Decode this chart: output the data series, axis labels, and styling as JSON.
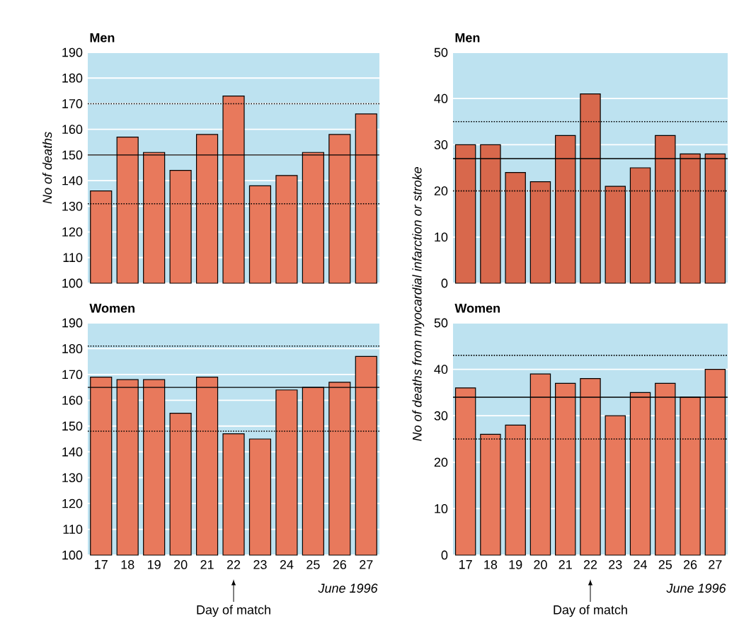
{
  "chart_data": [
    {
      "type": "bar",
      "title": "Men",
      "ylabel": "No of deaths",
      "categories": [
        "17",
        "18",
        "19",
        "20",
        "21",
        "22",
        "23",
        "24",
        "25",
        "26",
        "27"
      ],
      "values": [
        136,
        157,
        151,
        144,
        158,
        173,
        138,
        142,
        151,
        158,
        166
      ],
      "color": "#e8795c",
      "ylim": [
        100,
        190
      ],
      "yticks": [
        100,
        110,
        120,
        130,
        140,
        150,
        160,
        170,
        180,
        190
      ],
      "grid": "y",
      "tick_labels": "y",
      "bands": [
        {
          "axis": "y",
          "from": 100,
          "to": 190,
          "color": "#bde2f0"
        }
      ],
      "ref_lines": [
        {
          "axis": "y",
          "value": 170,
          "line_style": "dotted"
        },
        {
          "axis": "y",
          "value": 150,
          "line_style": "solid"
        },
        {
          "axis": "y",
          "value": 131,
          "line_style": "dotted"
        }
      ]
    },
    {
      "type": "bar",
      "title": "Men",
      "ylabel": "No of deaths from myocardial infarction or stroke",
      "categories": [
        "17",
        "18",
        "19",
        "20",
        "21",
        "22",
        "23",
        "24",
        "25",
        "26",
        "27"
      ],
      "values": [
        30,
        30,
        24,
        22,
        32,
        41,
        21,
        25,
        32,
        28,
        28
      ],
      "color": "#d8684c",
      "ylim": [
        0,
        50
      ],
      "yticks": [
        0,
        10,
        20,
        30,
        40,
        50
      ],
      "grid": "y",
      "tick_labels": "y",
      "bands": [
        {
          "axis": "y",
          "from": 0,
          "to": 50,
          "color": "#bde2f0"
        }
      ],
      "ref_lines": [
        {
          "axis": "y",
          "value": 35,
          "line_style": "dotted"
        },
        {
          "axis": "y",
          "value": 27,
          "line_style": "solid"
        },
        {
          "axis": "y",
          "value": 20,
          "line_style": "dotted"
        }
      ]
    },
    {
      "type": "bar",
      "title": "Women",
      "categories": [
        "17",
        "18",
        "19",
        "20",
        "21",
        "22",
        "23",
        "24",
        "25",
        "26",
        "27"
      ],
      "values": [
        169,
        168,
        168,
        155,
        169,
        147,
        145,
        164,
        165,
        167,
        177
      ],
      "color": "#e8795c",
      "ylim": [
        100,
        190
      ],
      "yticks": [
        100,
        110,
        120,
        130,
        140,
        150,
        160,
        170,
        180,
        190
      ],
      "grid": "y",
      "bands": [
        {
          "axis": "y",
          "from": 100,
          "to": 190,
          "color": "#bde2f0"
        }
      ],
      "ref_lines": [
        {
          "axis": "y",
          "value": 181,
          "line_style": "dotted"
        },
        {
          "axis": "y",
          "value": 165,
          "line_style": "solid"
        },
        {
          "axis": "y",
          "value": 148,
          "line_style": "dotted"
        }
      ],
      "annotations": [
        "June 1996",
        {
          "text": "Day of match",
          "x": "22"
        }
      ]
    },
    {
      "type": "bar",
      "title": "Women",
      "categories": [
        "17",
        "18",
        "19",
        "20",
        "21",
        "22",
        "23",
        "24",
        "25",
        "26",
        "27"
      ],
      "values": [
        36,
        26,
        28,
        39,
        37,
        38,
        30,
        35,
        37,
        34,
        40
      ],
      "color": "#e8795c",
      "ylim": [
        0,
        50
      ],
      "yticks": [
        0,
        10,
        20,
        30,
        40,
        50
      ],
      "grid": "y",
      "bands": [
        {
          "axis": "y",
          "from": 0,
          "to": 50,
          "color": "#bde2f0"
        }
      ],
      "ref_lines": [
        {
          "axis": "y",
          "value": 43,
          "line_style": "dotted"
        },
        {
          "axis": "y",
          "value": 34,
          "line_style": "solid"
        },
        {
          "axis": "y",
          "value": 25,
          "line_style": "dotted"
        }
      ],
      "annotations": [
        "June 1996",
        {
          "text": "Day of match",
          "x": "22"
        }
      ]
    }
  ]
}
